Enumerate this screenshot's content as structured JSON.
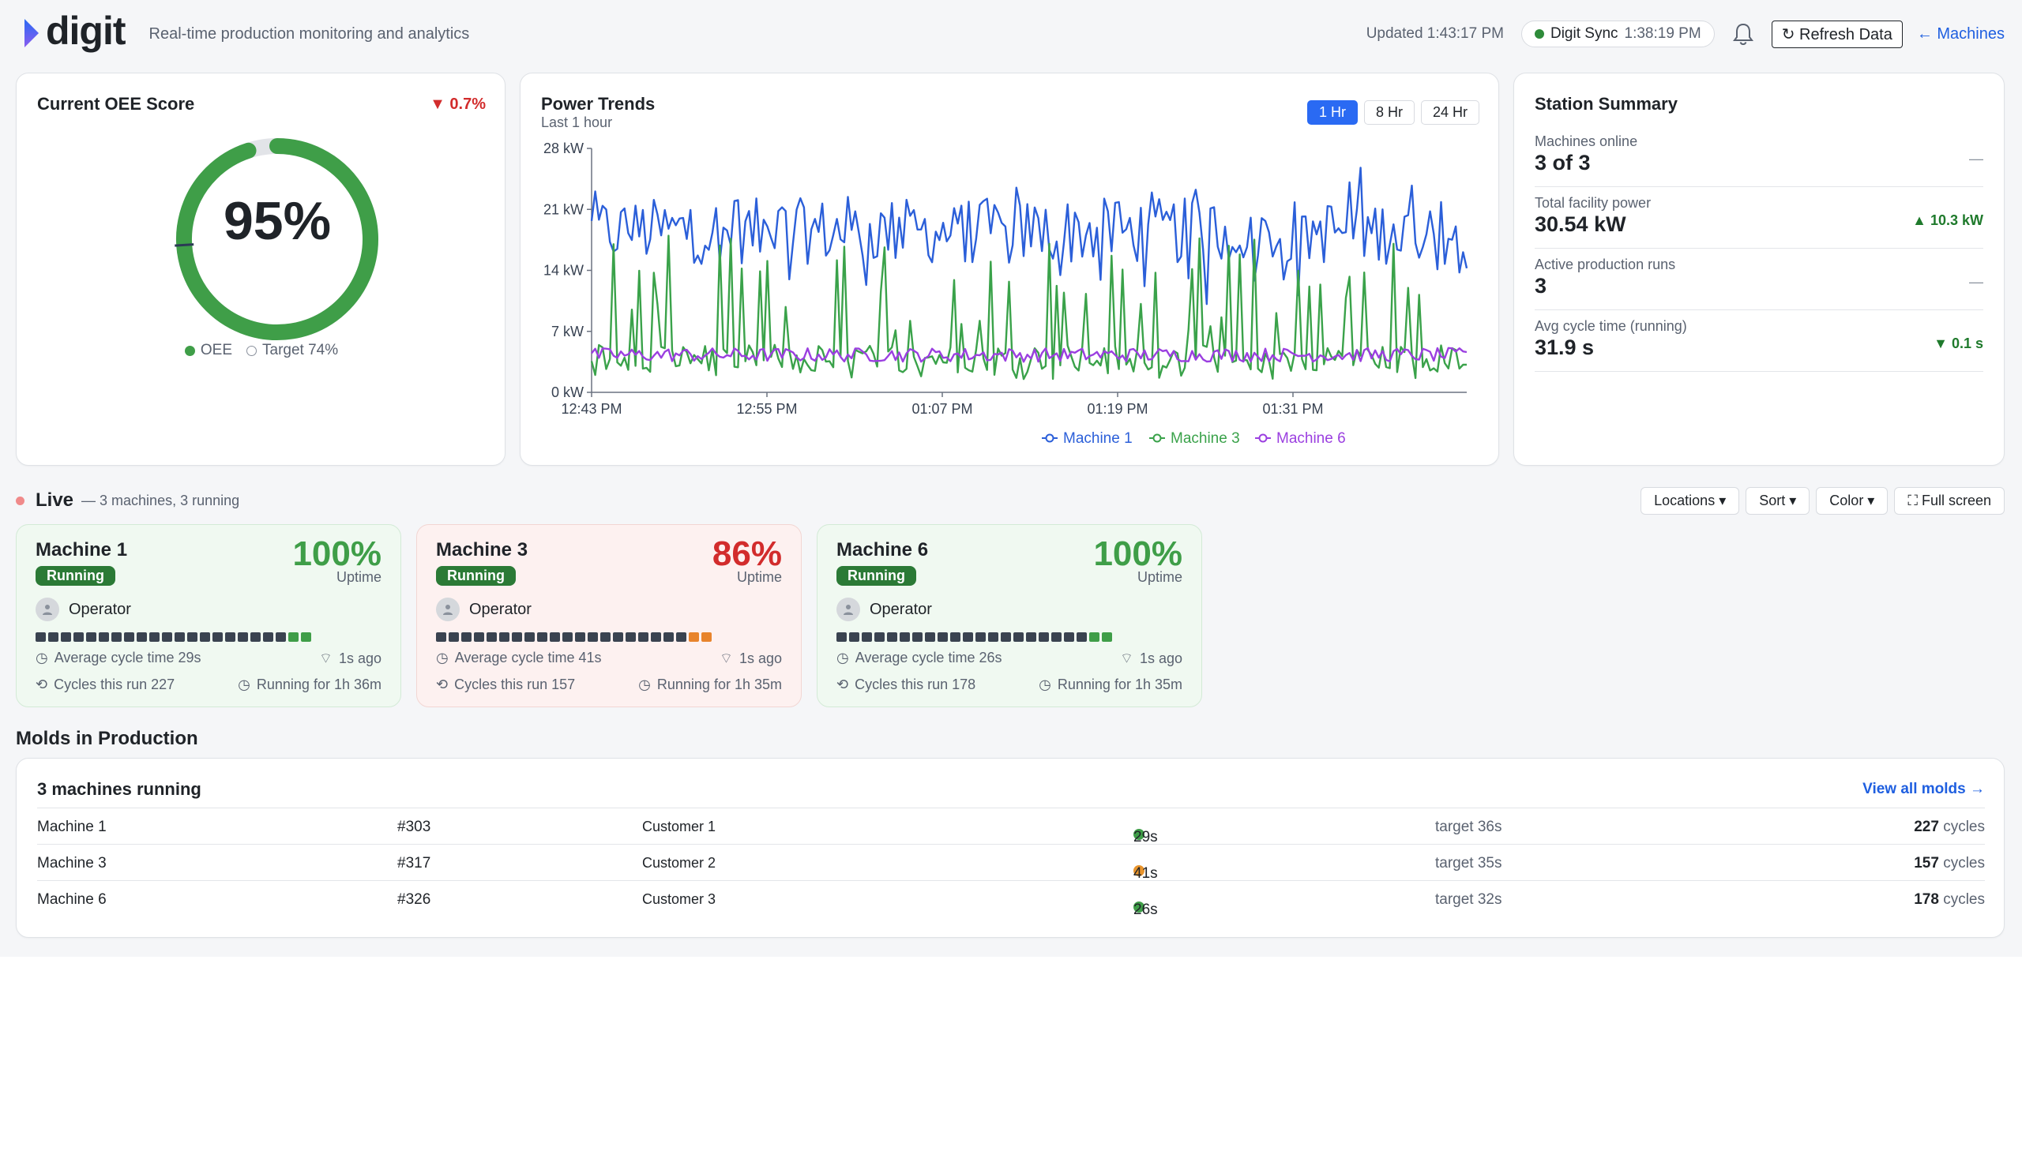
{
  "header": {
    "brand": "digit",
    "tagline": "Real-time production monitoring and analytics",
    "updated": "Updated 1:43:17 PM",
    "sync_label": "Digit Sync",
    "sync_time": "1:38:19 PM",
    "refresh_label": "↻ Refresh Data",
    "machines_link": "← Machines",
    "icons": {
      "logo": "digit-logo-icon",
      "bell": "bell-icon",
      "sync": "status-dot-icon"
    }
  },
  "oee": {
    "title": "Current OEE Score",
    "delta": "▼ 0.7%",
    "value": "95%",
    "value_fraction": 0.95,
    "target_fraction": 0.74,
    "legend_oee": "OEE",
    "legend_target": "Target 74%",
    "colors": {
      "oee": "#3f9e48",
      "track": "#e2e4e8",
      "target_marker": "#2b3a55"
    }
  },
  "power": {
    "title": "Power Trends",
    "subtitle": "Last 1 hour",
    "ranges": [
      "1 Hr",
      "8 Hr",
      "24 Hr"
    ],
    "active_range": "1 Hr"
  },
  "chart_data": {
    "type": "line",
    "title": "Power Trends",
    "subtitle": "Last 1 hour",
    "ylim": [
      0,
      28
    ],
    "yticks": [
      "0 kW",
      "7 kW",
      "14 kW",
      "21 kW",
      "28 kW"
    ],
    "xticks": [
      "12:43 PM",
      "12:55 PM",
      "01:07 PM",
      "01:19 PM",
      "01:31 PM"
    ],
    "grid": false,
    "legend": "bottom",
    "series": [
      {
        "name": "Machine 1",
        "color": "#2b5fd9",
        "base": 18.5,
        "amp": 3.8,
        "spike": 2.2
      },
      {
        "name": "Machine 3",
        "color": "#3aa24a",
        "base": 4.0,
        "amp": 1.5,
        "spike": 11
      },
      {
        "name": "Machine 6",
        "color": "#9b3fe0",
        "base": 4.3,
        "amp": 0.8,
        "spike": 0.6
      }
    ]
  },
  "summary": {
    "title": "Station Summary",
    "rows": [
      {
        "label": "Machines online",
        "value": "3 of 3",
        "delta": "—",
        "trend": "neutral"
      },
      {
        "label": "Total facility power",
        "value": "30.54 kW",
        "delta": "▲ 10.3 kW",
        "trend": "up"
      },
      {
        "label": "Active production runs",
        "value": "3",
        "delta": "—",
        "trend": "neutral"
      },
      {
        "label": "Avg cycle time (running)",
        "value": "31.9 s",
        "delta": "▼ 0.1 s",
        "trend": "down"
      }
    ]
  },
  "live": {
    "title": "Live",
    "subtitle": "— 3 machines, 3 running",
    "controls": [
      "Locations ▾",
      "Sort ▾",
      "Color ▾",
      "⛶ Full screen"
    ],
    "machines": [
      {
        "name": "Machine 1",
        "status": "Running",
        "uptime": "100%",
        "uptime_label": "Uptime",
        "tone": "ok",
        "operator": "Operator",
        "avg_cycle": "Average cycle time 29s",
        "last_seen": "1s ago",
        "cycles": "Cycles this run 227",
        "running_for": "Running for 1h 36m",
        "tail": [
          "g",
          "g"
        ]
      },
      {
        "name": "Machine 3",
        "status": "Running",
        "uptime": "86%",
        "uptime_label": "Uptime",
        "tone": "warn",
        "operator": "Operator",
        "avg_cycle": "Average cycle time 41s",
        "last_seen": "1s ago",
        "cycles": "Cycles this run 157",
        "running_for": "Running for 1h 35m",
        "tail": [
          "o",
          "o"
        ]
      },
      {
        "name": "Machine 6",
        "status": "Running",
        "uptime": "100%",
        "uptime_label": "Uptime",
        "tone": "ok",
        "operator": "Operator",
        "avg_cycle": "Average cycle time 26s",
        "last_seen": "1s ago",
        "cycles": "Cycles this run 178",
        "running_for": "Running for 1h 35m",
        "tail": [
          "g",
          "g"
        ]
      }
    ]
  },
  "molds": {
    "section_title": "Molds in Production",
    "heading": "3 machines running",
    "view_all": "View all molds →",
    "cycles_unit": "cycles",
    "rows": [
      {
        "machine": "Machine 1",
        "mold": "#303",
        "customer": "Customer 1",
        "cycle": "29s",
        "cycle_color": "#3f9e48",
        "target": "target 36s",
        "count": "227"
      },
      {
        "machine": "Machine 3",
        "mold": "#317",
        "customer": "Customer 2",
        "cycle": "41s",
        "cycle_color": "#e8942c",
        "target": "target 35s",
        "count": "157"
      },
      {
        "machine": "Machine 6",
        "mold": "#326",
        "customer": "Customer 3",
        "cycle": "26s",
        "cycle_color": "#3f9e48",
        "target": "target 32s",
        "count": "178"
      }
    ]
  }
}
